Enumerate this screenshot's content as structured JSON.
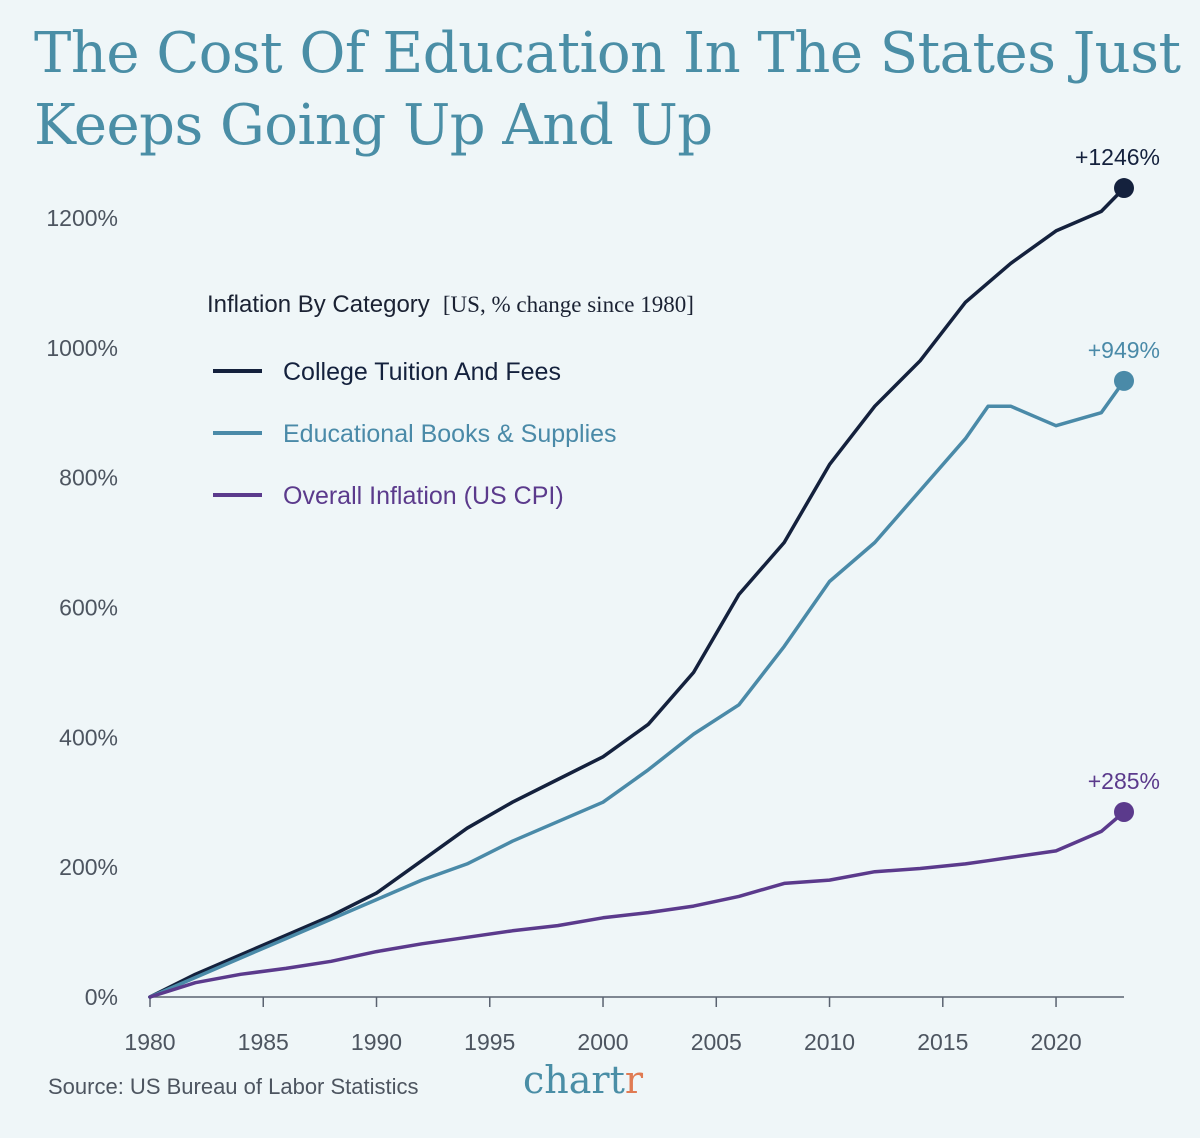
{
  "title": "The Cost Of Education In The States Just Keeps Going Up And Up",
  "source": "Source: US Bureau of Labor Statistics",
  "brand": {
    "main": "chart",
    "accent": "r"
  },
  "legend": {
    "title": "Inflation By Category",
    "subtitle": "[US, % change since 1980]"
  },
  "colors": {
    "background": "#eff6f8",
    "title": "#4a8ea6",
    "tuition": "#14213d",
    "books": "#4a8aa8",
    "cpi": "#5b3a8c",
    "brand_accent": "#e07b53"
  },
  "chart_data": {
    "type": "line",
    "title": "The Cost Of Education In The States Just Keeps Going Up And Up",
    "xlabel": "",
    "ylabel": "",
    "xlim": [
      1980,
      2023
    ],
    "ylim": [
      0,
      1300
    ],
    "x_ticks": [
      1980,
      1985,
      1990,
      1995,
      2000,
      2005,
      2010,
      2015,
      2020
    ],
    "y_ticks": [
      0,
      200,
      400,
      600,
      800,
      1000,
      1200
    ],
    "y_tick_labels": [
      "0%",
      "200%",
      "400%",
      "600%",
      "800%",
      "1000%",
      "1200%"
    ],
    "grid": false,
    "legend_position": "top-left",
    "x": [
      1980,
      1982,
      1984,
      1986,
      1988,
      1990,
      1992,
      1994,
      1996,
      1998,
      2000,
      2002,
      2004,
      2006,
      2008,
      2010,
      2012,
      2014,
      2016,
      2017,
      2018,
      2020,
      2022,
      2023
    ],
    "series": [
      {
        "name": "College Tuition And Fees",
        "end_label": "+1246%",
        "values": [
          0,
          35,
          65,
          95,
          125,
          160,
          210,
          260,
          300,
          335,
          370,
          420,
          500,
          620,
          700,
          820,
          910,
          980,
          1070,
          1100,
          1130,
          1180,
          1210,
          1246
        ]
      },
      {
        "name": "Educational Books & Supplies",
        "end_label": "+949%",
        "values": [
          0,
          30,
          60,
          90,
          120,
          150,
          180,
          205,
          240,
          270,
          300,
          350,
          405,
          450,
          540,
          640,
          700,
          780,
          860,
          910,
          910,
          880,
          900,
          949
        ]
      },
      {
        "name": "Overall Inflation (US CPI)",
        "end_label": "+285%",
        "values": [
          0,
          22,
          35,
          44,
          55,
          70,
          82,
          92,
          102,
          110,
          122,
          130,
          140,
          155,
          175,
          180,
          193,
          198,
          205,
          210,
          215,
          225,
          255,
          285
        ]
      }
    ]
  }
}
